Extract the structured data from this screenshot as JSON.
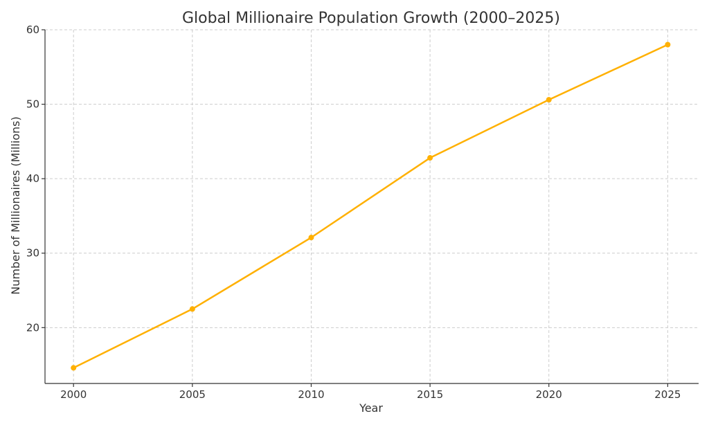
{
  "chart_data": {
    "type": "line",
    "title": "Global Millionaire Population Growth (2000–2025)",
    "xlabel": "Year",
    "ylabel": "Number of Millionaires (Millions)",
    "x": [
      2000,
      2005,
      2010,
      2015,
      2020,
      2025
    ],
    "series": [
      {
        "values": [
          14.6,
          22.5,
          32.1,
          42.8,
          50.6,
          58.0
        ],
        "color": "#FFB000"
      }
    ],
    "x_ticks": [
      "2000",
      "2005",
      "2010",
      "2015",
      "2020",
      "2025"
    ],
    "y_ticks": [
      "20",
      "30",
      "40",
      "50",
      "60"
    ],
    "xlim": [
      1998.8,
      2026.3
    ],
    "ylim": [
      12.5,
      60
    ],
    "grid": true,
    "marker": "circle",
    "spines": "left-bottom"
  }
}
